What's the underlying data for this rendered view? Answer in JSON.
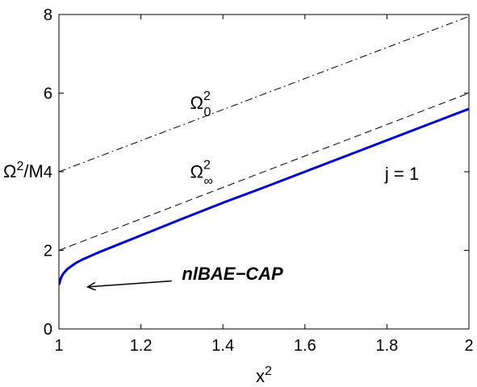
{
  "chart_data": {
    "type": "line",
    "title": "",
    "xlabel": {
      "base": "x",
      "sup": "2"
    },
    "ylabel": {
      "base": "Ω",
      "sup": "2",
      "rest": "/M"
    },
    "xlim": [
      1,
      2
    ],
    "ylim": [
      0,
      8
    ],
    "xticks": [
      1,
      1.2,
      1.4,
      1.6,
      1.8,
      2
    ],
    "xtick_labels": [
      "1",
      "1.2",
      "1.4",
      "1.6",
      "1.8",
      "2"
    ],
    "yticks": [
      0,
      2,
      4,
      6,
      8
    ],
    "ytick_labels": [
      "0",
      "2",
      "4",
      "6",
      "8"
    ],
    "grid": false,
    "series": [
      {
        "style": "dash-dot",
        "color": "#000000",
        "x": [
          1.0,
          2.0
        ],
        "y": [
          4.0,
          7.95
        ]
      },
      {
        "style": "dashed",
        "color": "#000000",
        "x": [
          1.0,
          2.0
        ],
        "y": [
          2.0,
          6.0
        ]
      },
      {
        "style": "solid",
        "color": "#0000cc",
        "x": [
          1.0,
          1.005,
          1.01,
          1.02,
          1.04,
          1.06,
          1.1,
          1.15,
          1.2,
          1.3,
          1.4,
          1.5,
          1.6,
          1.7,
          1.8,
          1.9,
          2.0
        ],
        "y": [
          1.12,
          1.3,
          1.4,
          1.52,
          1.67,
          1.78,
          1.96,
          2.17,
          2.38,
          2.8,
          3.21,
          3.6,
          4.0,
          4.4,
          4.8,
          5.2,
          5.6
        ]
      }
    ],
    "annotations": [
      {
        "id": "omega0",
        "base": "Ω",
        "sup": "2",
        "sub": "0",
        "x": 1.32,
        "y": 5.6
      },
      {
        "id": "omegainf",
        "base": "Ω",
        "sup": "2",
        "sub": "∞",
        "x": 1.32,
        "y": 3.85
      },
      {
        "id": "j1",
        "text": "j = 1",
        "color": "#0000cc",
        "x": 1.795,
        "y": 3.8
      },
      {
        "id": "nlbae",
        "text": "nlBAE−CAP",
        "x": 1.3,
        "y": 1.25
      }
    ],
    "arrow": {
      "from": [
        1.275,
        1.22
      ],
      "to": [
        1.07,
        1.07
      ]
    }
  }
}
